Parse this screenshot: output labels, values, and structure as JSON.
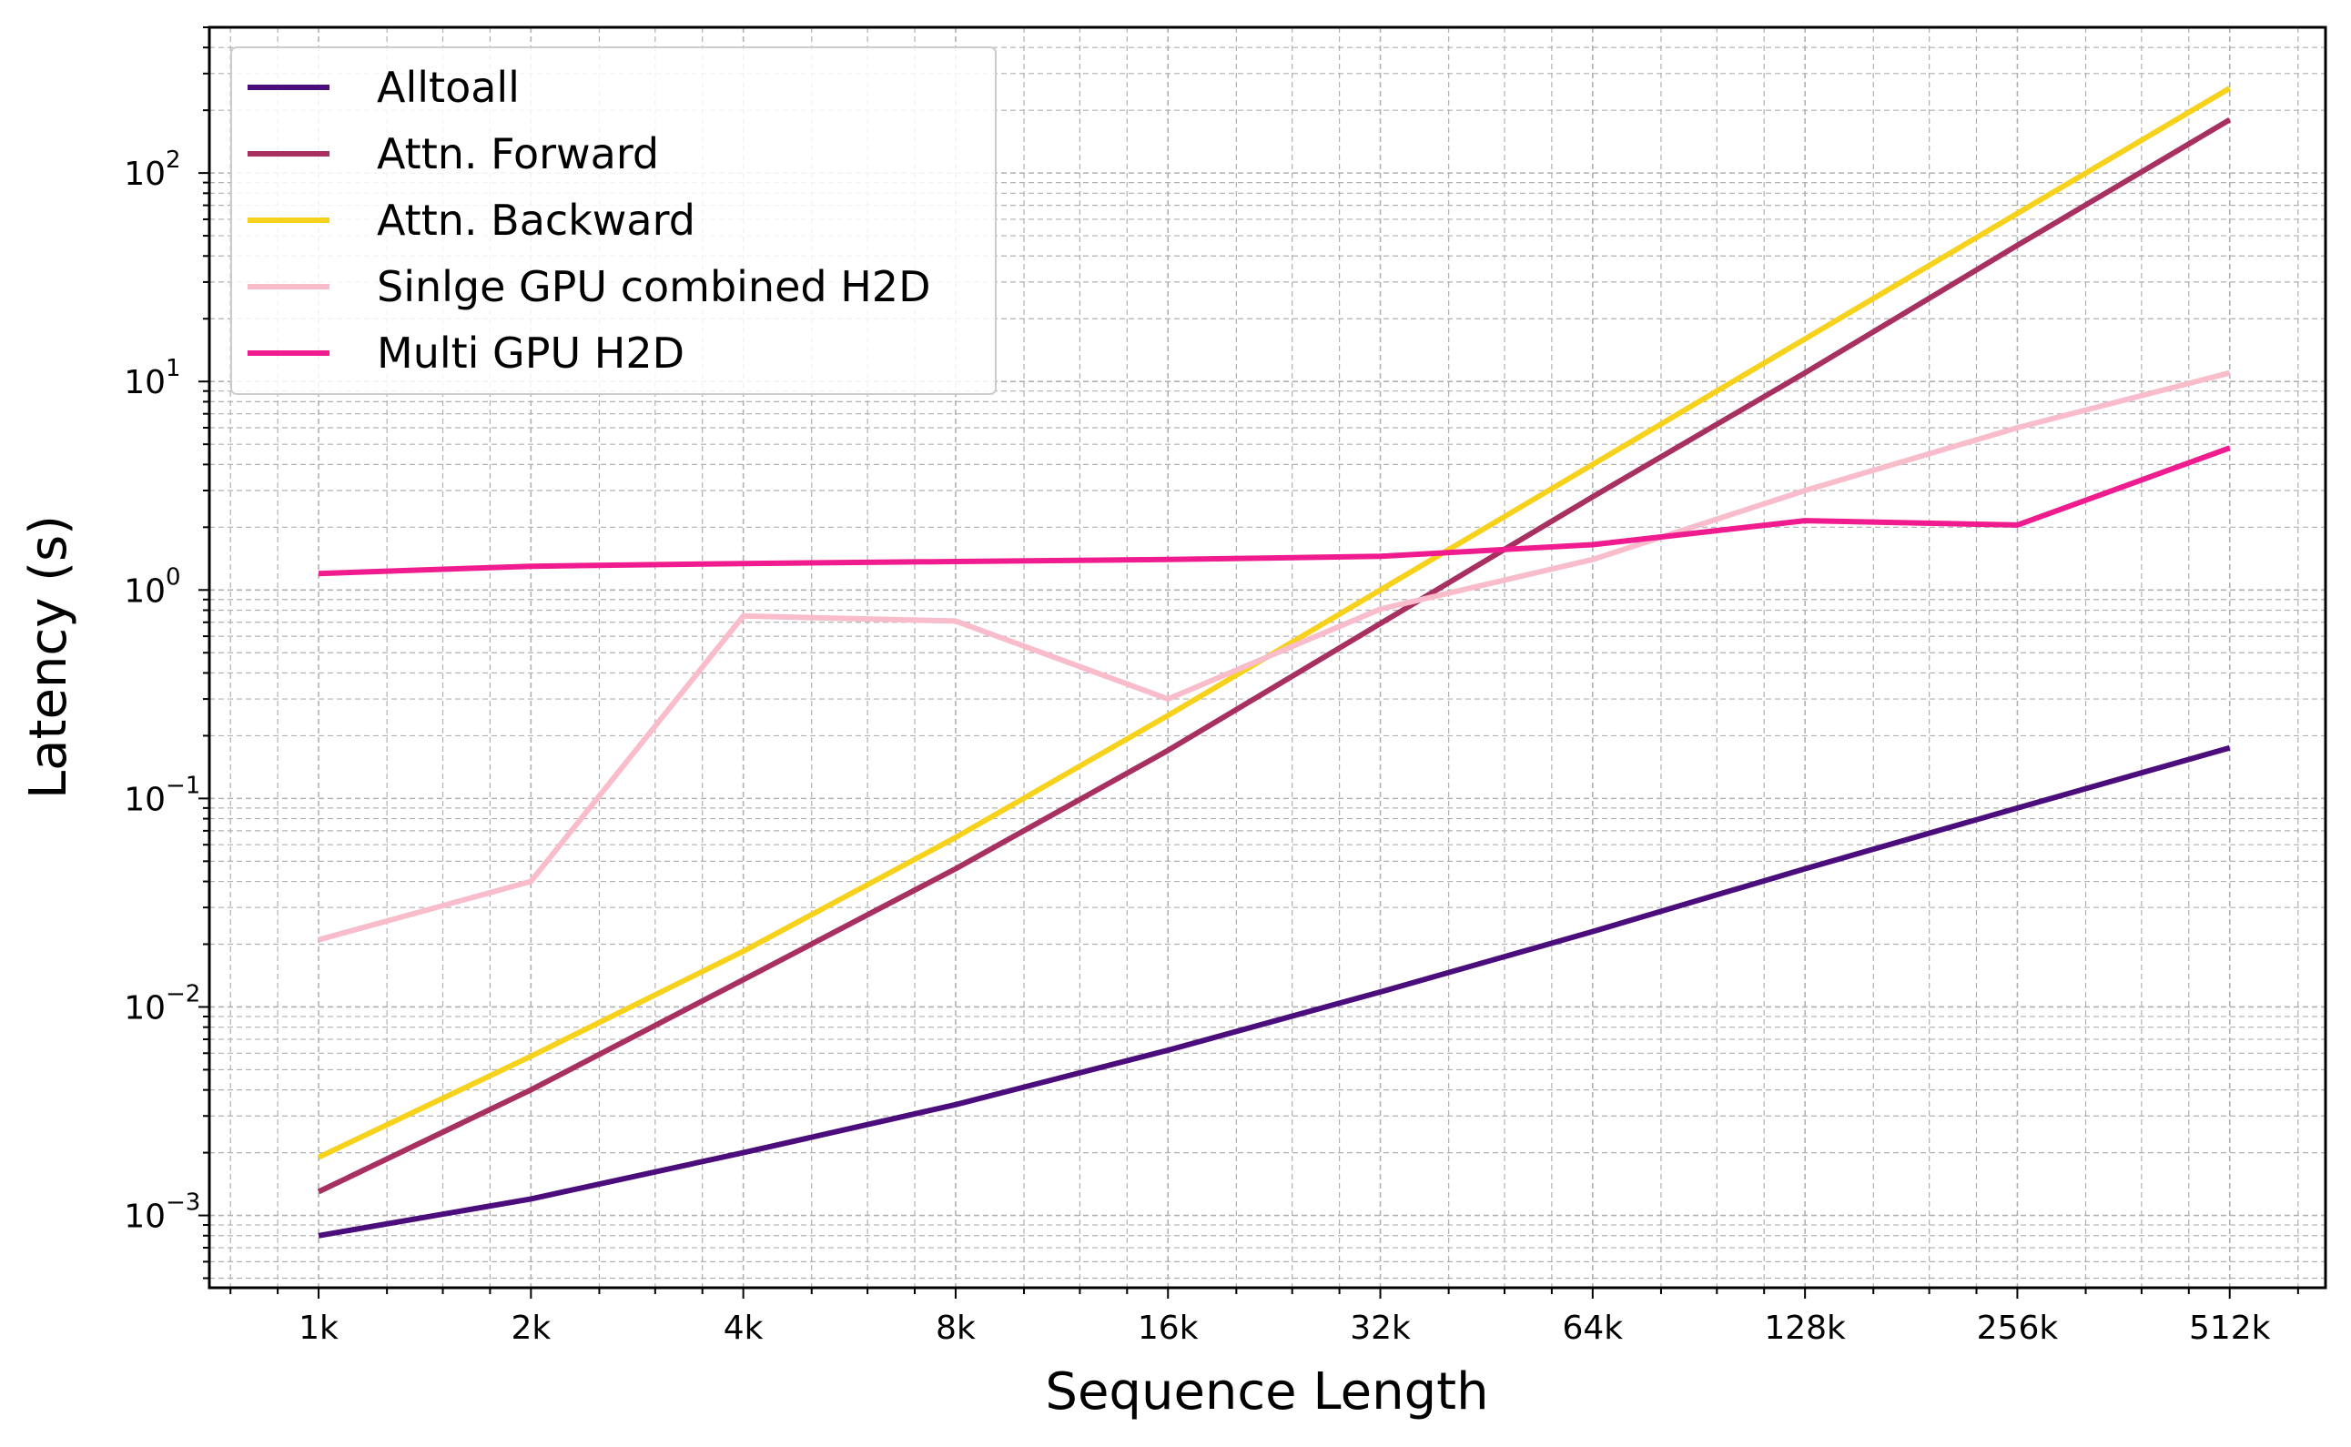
{
  "chart_data": {
    "type": "line",
    "xlabel": "Sequence Length",
    "ylabel": "Latency (s)",
    "x_scale": "log2",
    "y_scale": "log10",
    "grid": true,
    "legend_position": "top-left",
    "categories": [
      "1k",
      "2k",
      "4k",
      "8k",
      "16k",
      "32k",
      "64k",
      "128k",
      "256k",
      "512k"
    ],
    "x": [
      1,
      2,
      4,
      8,
      16,
      32,
      64,
      128,
      256,
      512
    ],
    "xlim": [
      0.7,
      700
    ],
    "ylim": [
      0.00045,
      500
    ],
    "y_ticks": [
      {
        "value": 0.001,
        "base": "10",
        "exp": "−3"
      },
      {
        "value": 0.01,
        "base": "10",
        "exp": "−2"
      },
      {
        "value": 0.1,
        "base": "10",
        "exp": "−1"
      },
      {
        "value": 1,
        "base": "10",
        "exp": "0"
      },
      {
        "value": 10,
        "base": "10",
        "exp": "1"
      },
      {
        "value": 100,
        "base": "10",
        "exp": "2"
      }
    ],
    "series": [
      {
        "name": "Alltoall",
        "color": "#4b0c7c",
        "values": [
          0.0008,
          0.0012,
          0.002,
          0.0034,
          0.0062,
          0.0118,
          0.023,
          0.046,
          0.09,
          0.175
        ]
      },
      {
        "name": "Attn. Forward",
        "color": "#a83060",
        "values": [
          0.0013,
          0.004,
          0.0135,
          0.046,
          0.17,
          0.69,
          2.8,
          11,
          45,
          180
        ]
      },
      {
        "name": "Attn. Backward",
        "color": "#f6d21c",
        "values": [
          0.0019,
          0.0058,
          0.0185,
          0.065,
          0.25,
          1.0,
          4.0,
          16,
          64,
          255
        ]
      },
      {
        "name": "Sinlge GPU combined H2D",
        "color": "#f8bccb",
        "values": [
          0.021,
          0.04,
          0.75,
          0.71,
          0.3,
          0.81,
          1.4,
          3.0,
          6.0,
          11
        ]
      },
      {
        "name": "Multi GPU H2D",
        "color": "#ef1b8f",
        "values": [
          1.2,
          1.3,
          1.34,
          1.37,
          1.4,
          1.45,
          1.65,
          2.15,
          2.05,
          4.8
        ]
      }
    ]
  }
}
